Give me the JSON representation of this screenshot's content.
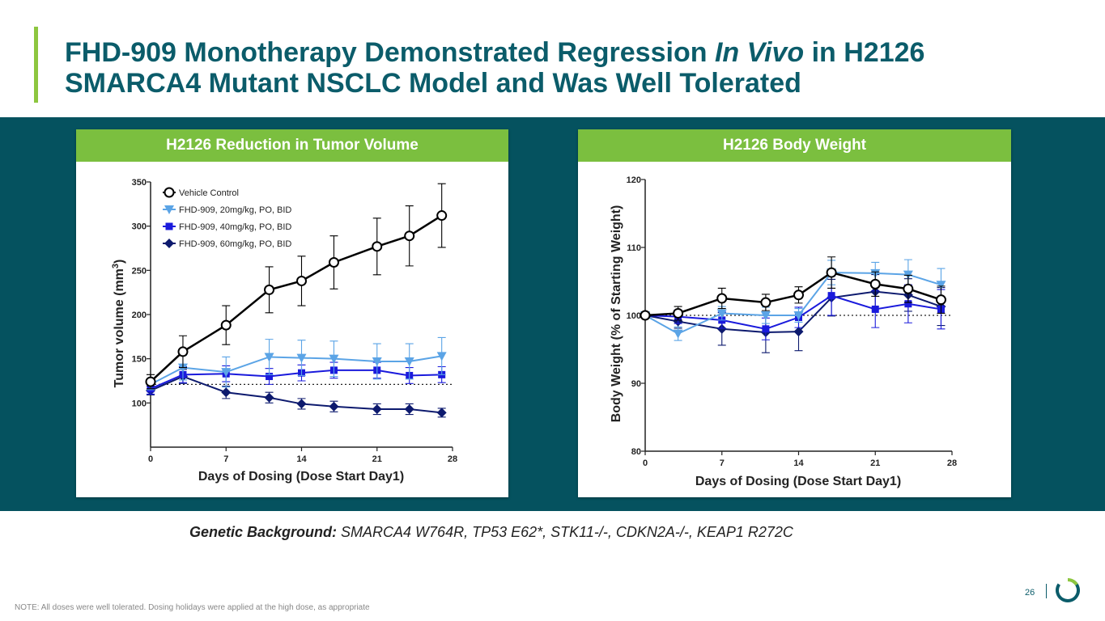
{
  "slide": {
    "title_part1": "FHD-909 Monotherapy Demonstrated Regression ",
    "title_italic": "In Vivo",
    "title_part2": " in H2126",
    "title_line2": "SMARCA4 Mutant NSCLC Model and Was Well Tolerated",
    "genetics_label": "Genetic Background:",
    "genetics_text": " SMARCA4 W764R, TP53 E62*, STK11-/-, CDKN2A-/-, KEAP1 R272C",
    "note": "NOTE: All doses were well tolerated. Dosing holidays were applied at the high dose, as appropriate",
    "page_number": "26",
    "colors": {
      "accent": "#8dc63f",
      "title": "#0b5c6a",
      "band": "#05525f",
      "header": "#7bbf3f"
    }
  },
  "chart_data": [
    {
      "type": "line",
      "title": "H2126 Reduction in Tumor Volume",
      "xlabel": "Days of Dosing (Dose Start Day1)",
      "ylabel_main": "Tumor volume (mm",
      "ylabel_sup": "3",
      "ylabel_end": ")",
      "xlim": [
        0,
        28
      ],
      "ylim": [
        50,
        350
      ],
      "xticks": [
        0,
        7,
        14,
        21,
        28
      ],
      "yticks": [
        100,
        150,
        200,
        250,
        300,
        350
      ],
      "reference_line": 121,
      "legend_position": "top-left",
      "series": [
        {
          "name": "Vehicle Control",
          "color": "#000000",
          "marker": "open-circle",
          "x": [
            0,
            3,
            7,
            11,
            14,
            17,
            21,
            24,
            27
          ],
          "y": [
            124,
            158,
            188,
            228,
            238,
            259,
            277,
            289,
            312
          ],
          "err": [
            8,
            18,
            22,
            26,
            28,
            30,
            32,
            34,
            36
          ]
        },
        {
          "name": "FHD-909, 20mg/kg, PO, BID",
          "color": "#5ba4e6",
          "marker": "triangle-down",
          "x": [
            0,
            3,
            7,
            11,
            14,
            17,
            21,
            24,
            27
          ],
          "y": [
            121,
            140,
            135,
            152,
            151,
            150,
            147,
            147,
            153
          ],
          "err": [
            6,
            14,
            17,
            20,
            20,
            20,
            20,
            20,
            21
          ]
        },
        {
          "name": "FHD-909, 40mg/kg, PO, BID",
          "color": "#1a1adc",
          "marker": "square",
          "x": [
            0,
            3,
            7,
            11,
            14,
            17,
            21,
            24,
            27
          ],
          "y": [
            116,
            132,
            133,
            130,
            134,
            137,
            137,
            131,
            132
          ],
          "err": [
            6,
            9,
            9,
            9,
            9,
            9,
            9,
            9,
            9
          ]
        },
        {
          "name": "FHD-909, 60mg/kg, PO, BID",
          "color": "#0d1a6e",
          "marker": "diamond",
          "x": [
            0,
            3,
            7,
            11,
            14,
            17,
            21,
            24,
            27
          ],
          "y": [
            114,
            130,
            112,
            106,
            99,
            96,
            93,
            93,
            89
          ],
          "err": [
            5,
            8,
            7,
            6,
            6,
            6,
            6,
            6,
            5
          ]
        }
      ]
    },
    {
      "type": "line",
      "title": "H2126 Body Weight",
      "xlabel": "Days of Dosing (Dose Start Day1)",
      "ylabel": "Body Weight (% of Starting Weight)",
      "xlim": [
        0,
        28
      ],
      "ylim": [
        80,
        120
      ],
      "xticks": [
        0,
        7,
        14,
        21,
        28
      ],
      "yticks": [
        80,
        90,
        100,
        110,
        120
      ],
      "reference_line": 100,
      "series": [
        {
          "name": "Vehicle Control",
          "color": "#000000",
          "marker": "open-circle",
          "x": [
            0,
            3,
            7,
            11,
            14,
            17,
            21,
            24,
            27
          ],
          "y": [
            100,
            100.3,
            102.5,
            101.9,
            103,
            106.3,
            104.6,
            103.9,
            102.3
          ],
          "err": [
            0.3,
            1,
            1.5,
            1.2,
            1.2,
            2.3,
            1.8,
            2,
            2
          ]
        },
        {
          "name": "FHD-909, 20mg/kg, PO, BID",
          "color": "#5ba4e6",
          "marker": "triangle-down",
          "x": [
            0,
            3,
            7,
            11,
            14,
            17,
            21,
            24,
            27
          ],
          "y": [
            100,
            97.3,
            100.3,
            100,
            100,
            106.3,
            106.2,
            106,
            104.5
          ],
          "err": [
            0.3,
            1,
            1,
            1.2,
            1,
            1.8,
            1.6,
            2.2,
            2.4
          ]
        },
        {
          "name": "FHD-909, 40mg/kg, PO, BID",
          "color": "#1a1adc",
          "marker": "square",
          "x": [
            0,
            3,
            7,
            11,
            14,
            17,
            21,
            24,
            27
          ],
          "y": [
            100,
            99.8,
            99.3,
            98,
            99.7,
            102.9,
            100.9,
            101.7,
            100.9
          ],
          "err": [
            0.3,
            1,
            1.2,
            1.6,
            1.5,
            2.9,
            2.7,
            2.8,
            2.9
          ]
        },
        {
          "name": "FHD-909, 60mg/kg, PO, BID",
          "color": "#0d1a6e",
          "marker": "diamond",
          "x": [
            0,
            3,
            7,
            11,
            14,
            17,
            21,
            24,
            27
          ],
          "y": [
            100,
            99.1,
            98,
            97.5,
            97.6,
            102.6,
            103.5,
            103,
            101.3
          ],
          "err": [
            0.3,
            1,
            2.4,
            3,
            2.8,
            2.7,
            2.5,
            2.4,
            2.8
          ]
        }
      ]
    }
  ]
}
